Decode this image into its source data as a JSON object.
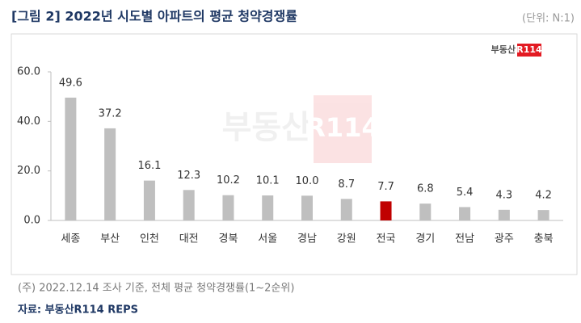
{
  "chart_data": {
    "type": "bar",
    "title": "[그림 2] 2022년 시도별 아파트의 평균 청약경쟁률",
    "unit": "(단위: N:1)",
    "logo": {
      "text": "부동산",
      "badge": "R114"
    },
    "watermark": {
      "text": "부동산",
      "badge": "R114"
    },
    "categories": [
      "세종",
      "부산",
      "인천",
      "대전",
      "경북",
      "서울",
      "경남",
      "강원",
      "전국",
      "경기",
      "전남",
      "광주",
      "충북"
    ],
    "values": [
      49.6,
      37.2,
      16.1,
      12.3,
      10.2,
      10.1,
      10.0,
      8.7,
      7.7,
      6.8,
      5.4,
      4.3,
      4.2
    ],
    "value_labels": [
      "49.6",
      "37.2",
      "16.1",
      "12.3",
      "10.2",
      "10.1",
      "10.0",
      "8.7",
      "7.7",
      "6.8",
      "5.4",
      "4.3",
      "4.2"
    ],
    "colors": [
      "#bfbfbf",
      "#bfbfbf",
      "#bfbfbf",
      "#bfbfbf",
      "#bfbfbf",
      "#bfbfbf",
      "#bfbfbf",
      "#bfbfbf",
      "#c00000",
      "#bfbfbf",
      "#bfbfbf",
      "#bfbfbf",
      "#bfbfbf"
    ],
    "ylim": [
      0,
      60
    ],
    "yticks": [
      {
        "value": 0,
        "label": "0.0"
      },
      {
        "value": 20,
        "label": "20.0"
      },
      {
        "value": 40,
        "label": "40.0"
      },
      {
        "value": 60,
        "label": "60.0"
      }
    ],
    "grid": false,
    "note": "(주) 2022.12.14 조사 기준, 전체 평균 청약경쟁률(1~2순위)",
    "source": "자료: 부동산R114 REPS"
  }
}
